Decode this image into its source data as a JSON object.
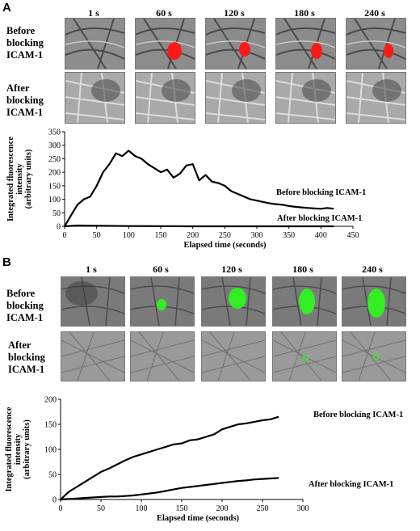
{
  "panel_a": {
    "letter": "A",
    "time_labels": [
      "1 s",
      "60 s",
      "120 s",
      "180 s",
      "240 s"
    ],
    "row_labels": {
      "before": [
        "Before",
        "blocking",
        "ICAM-1"
      ],
      "after": [
        "After",
        "blocking",
        "ICAM-1"
      ]
    },
    "cell_color": "#ff1a1a"
  },
  "panel_b": {
    "letter": "B",
    "time_labels": [
      "1 s",
      "60 s",
      "120 s",
      "180 s",
      "240 s"
    ],
    "row_labels": {
      "before": [
        "Before",
        "blocking",
        "ICAM-1"
      ],
      "after": [
        "After",
        "blocking",
        "ICAM-1"
      ]
    },
    "cell_color": "#33ee22"
  },
  "chart_data": [
    {
      "type": "line",
      "xlabel": "Elapsed time (seconds)",
      "ylabel": [
        "Integrated fluorescence",
        "intensity",
        "(arbitrary units)"
      ],
      "xlim": [
        0,
        450
      ],
      "ylim": [
        0,
        350
      ],
      "xticks": [
        0,
        50,
        100,
        150,
        200,
        250,
        300,
        350,
        400,
        450
      ],
      "yticks": [
        0,
        50,
        100,
        150,
        200,
        250,
        300,
        350
      ],
      "series": [
        {
          "name": "Before blocking ICAM-1",
          "x": [
            0,
            10,
            20,
            30,
            40,
            50,
            60,
            70,
            80,
            90,
            100,
            110,
            120,
            130,
            140,
            150,
            160,
            170,
            180,
            190,
            200,
            210,
            220,
            230,
            240,
            250,
            260,
            270,
            280,
            290,
            300,
            310,
            320,
            330,
            340,
            350,
            360,
            370,
            380,
            390,
            400,
            410,
            420
          ],
          "y": [
            0,
            40,
            80,
            100,
            110,
            150,
            200,
            230,
            270,
            260,
            280,
            260,
            250,
            230,
            215,
            200,
            210,
            180,
            195,
            225,
            230,
            170,
            190,
            165,
            160,
            150,
            130,
            120,
            110,
            100,
            95,
            90,
            85,
            82,
            80,
            75,
            72,
            70,
            68,
            66,
            65,
            68,
            65
          ]
        },
        {
          "name": "After blocking ICAM-1",
          "x": [
            0,
            20,
            50,
            100,
            200,
            300,
            400,
            420
          ],
          "y": [
            0,
            3,
            2,
            1,
            0,
            0,
            0,
            0
          ]
        }
      ]
    },
    {
      "type": "line",
      "xlabel": "Elapsed time (seconds)",
      "ylabel": [
        "Integrated fluorescence",
        "intensity",
        "(arbitrary units)"
      ],
      "xlim": [
        0,
        300
      ],
      "ylim": [
        0,
        200
      ],
      "xticks": [
        0,
        50,
        100,
        150,
        200,
        250,
        300
      ],
      "yticks": [
        0,
        50,
        100,
        150,
        200
      ],
      "series": [
        {
          "name": "Before blocking ICAM-1",
          "x": [
            0,
            10,
            20,
            30,
            40,
            50,
            60,
            70,
            80,
            90,
            100,
            110,
            120,
            130,
            140,
            150,
            160,
            170,
            180,
            190,
            200,
            210,
            220,
            230,
            240,
            250,
            260,
            270
          ],
          "y": [
            0,
            15,
            25,
            35,
            45,
            55,
            62,
            70,
            78,
            85,
            90,
            95,
            100,
            105,
            110,
            112,
            118,
            120,
            125,
            130,
            140,
            145,
            150,
            152,
            155,
            158,
            160,
            165
          ]
        },
        {
          "name": "After blocking  ICAM-1",
          "x": [
            0,
            10,
            20,
            30,
            40,
            50,
            60,
            70,
            80,
            90,
            100,
            110,
            120,
            130,
            140,
            150,
            160,
            170,
            180,
            190,
            200,
            210,
            220,
            230,
            240,
            250,
            260,
            270
          ],
          "y": [
            0,
            1,
            2,
            3,
            4,
            5,
            6,
            6,
            7,
            8,
            10,
            12,
            14,
            17,
            20,
            23,
            25,
            27,
            29,
            31,
            33,
            35,
            37,
            38,
            40,
            41,
            42,
            43
          ]
        }
      ]
    }
  ]
}
